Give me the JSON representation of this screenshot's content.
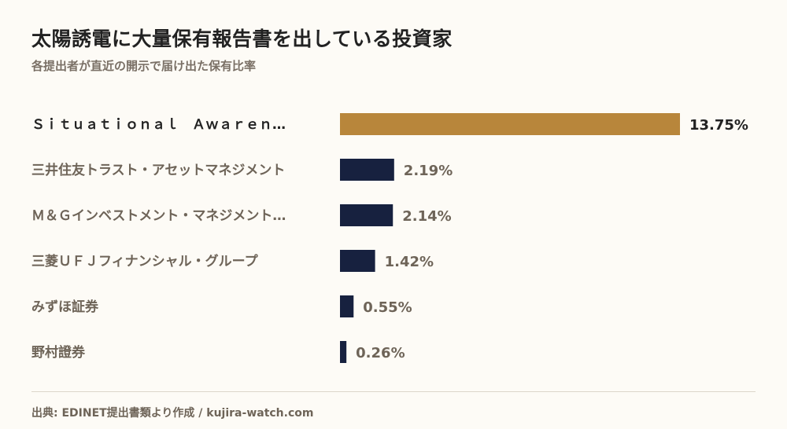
{
  "header": {
    "title": "太陽誘電に大量保有報告書を出している投資家",
    "subtitle": "各提出者が直近の開示で届け出た保有比率"
  },
  "colors": {
    "highlight": "#b8863b",
    "bar": "#17213f",
    "label": "#6e6458",
    "value_highlight": "#222222",
    "value": "#6e6458"
  },
  "chart_data": {
    "type": "bar",
    "orientation": "horizontal",
    "categories": [
      "Ｓｉｔｕａｔｉｏｎａｌ　Ａｗａｒｅｎ…",
      "三井住友トラスト・アセットマネジメント",
      "Ｍ＆Ｇインベストメント・マネジメント…",
      "三菱ＵＦＪフィナンシャル・グループ",
      "みずほ証券",
      "野村證券"
    ],
    "values": [
      13.75,
      2.19,
      2.14,
      1.42,
      0.55,
      0.26
    ],
    "value_labels": [
      "13.75%",
      "2.19%",
      "2.14%",
      "1.42%",
      "0.55%",
      "0.26%"
    ],
    "highlight_index": 0,
    "xlim": [
      0,
      13.75
    ],
    "grid": false
  },
  "footer": {
    "source": "出典: EDINET提出書類より作成 / kujira-watch.com"
  }
}
